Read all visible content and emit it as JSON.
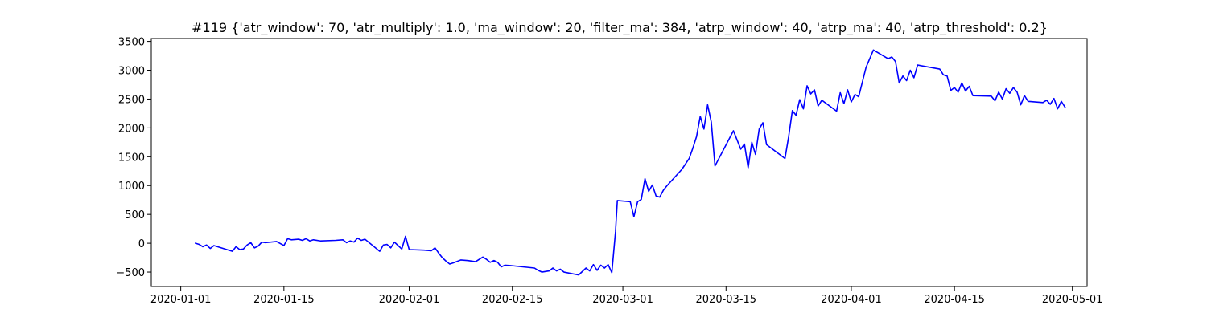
{
  "chart_data": {
    "type": "line",
    "title": "#119 {'atr_window': 70, 'atr_multiply': 1.0, 'ma_window': 20, 'filter_ma': 384, 'atrp_window': 40, 'atrp_ma': 40, 'atrp_threshold': 0.2}",
    "xlabel": "",
    "ylabel": "",
    "x_type": "date",
    "xlim": [
      "2019-12-28",
      "2020-05-03"
    ],
    "ylim": [
      -750,
      3550
    ],
    "x_ticks": [
      "2020-01-01",
      "2020-01-15",
      "2020-02-01",
      "2020-02-15",
      "2020-03-01",
      "2020-03-15",
      "2020-04-01",
      "2020-04-15",
      "2020-05-01"
    ],
    "y_ticks": [
      -500,
      0,
      500,
      1000,
      1500,
      2000,
      2500,
      3000,
      3500
    ],
    "grid": false,
    "legend": "none",
    "series": [
      {
        "color": "#0000ff",
        "points": [
          [
            "2020-01-03",
            0
          ],
          [
            "2020-01-03T12",
            -20
          ],
          [
            "2020-01-04",
            -60
          ],
          [
            "2020-01-04T12",
            -30
          ],
          [
            "2020-01-05",
            -90
          ],
          [
            "2020-01-05T12",
            -40
          ],
          [
            "2020-01-08",
            -140
          ],
          [
            "2020-01-08T12",
            -60
          ],
          [
            "2020-01-09",
            -110
          ],
          [
            "2020-01-09T12",
            -100
          ],
          [
            "2020-01-10",
            -30
          ],
          [
            "2020-01-10T12",
            10
          ],
          [
            "2020-01-11",
            -80
          ],
          [
            "2020-01-11T12",
            -50
          ],
          [
            "2020-01-12",
            20
          ],
          [
            "2020-01-12T12",
            10
          ],
          [
            "2020-01-14",
            30
          ],
          [
            "2020-01-15",
            -40
          ],
          [
            "2020-01-15T12",
            80
          ],
          [
            "2020-01-16",
            60
          ],
          [
            "2020-01-17",
            70
          ],
          [
            "2020-01-17T12",
            50
          ],
          [
            "2020-01-18",
            80
          ],
          [
            "2020-01-18T12",
            40
          ],
          [
            "2020-01-19",
            60
          ],
          [
            "2020-01-20",
            40
          ],
          [
            "2020-01-22",
            50
          ],
          [
            "2020-01-23",
            60
          ],
          [
            "2020-01-23T12",
            10
          ],
          [
            "2020-01-24",
            40
          ],
          [
            "2020-01-24T12",
            20
          ],
          [
            "2020-01-25",
            90
          ],
          [
            "2020-01-25T12",
            50
          ],
          [
            "2020-01-26",
            70
          ],
          [
            "2020-01-28",
            -140
          ],
          [
            "2020-01-28T12",
            -30
          ],
          [
            "2020-01-29",
            -20
          ],
          [
            "2020-01-29T12",
            -80
          ],
          [
            "2020-01-30",
            20
          ],
          [
            "2020-01-30T12",
            -40
          ],
          [
            "2020-01-31",
            -100
          ],
          [
            "2020-01-31T12",
            120
          ],
          [
            "2020-02-01",
            -110
          ],
          [
            "2020-02-03",
            -120
          ],
          [
            "2020-02-04",
            -130
          ],
          [
            "2020-02-04T12",
            -80
          ],
          [
            "2020-02-05",
            -170
          ],
          [
            "2020-02-05T12",
            -250
          ],
          [
            "2020-02-06",
            -310
          ],
          [
            "2020-02-06T12",
            -360
          ],
          [
            "2020-02-07",
            -340
          ],
          [
            "2020-02-08",
            -290
          ],
          [
            "2020-02-09",
            -300
          ],
          [
            "2020-02-10",
            -320
          ],
          [
            "2020-02-11",
            -240
          ],
          [
            "2020-02-11T12",
            -280
          ],
          [
            "2020-02-12",
            -330
          ],
          [
            "2020-02-12T12",
            -300
          ],
          [
            "2020-02-13",
            -330
          ],
          [
            "2020-02-13T12",
            -410
          ],
          [
            "2020-02-14",
            -380
          ],
          [
            "2020-02-15",
            -390
          ],
          [
            "2020-02-18",
            -430
          ],
          [
            "2020-02-18T12",
            -470
          ],
          [
            "2020-02-19",
            -500
          ],
          [
            "2020-02-20",
            -480
          ],
          [
            "2020-02-20T12",
            -430
          ],
          [
            "2020-02-21",
            -480
          ],
          [
            "2020-02-21T12",
            -450
          ],
          [
            "2020-02-22",
            -500
          ],
          [
            "2020-02-24",
            -550
          ],
          [
            "2020-02-25",
            -430
          ],
          [
            "2020-02-25T12",
            -480
          ],
          [
            "2020-02-26",
            -370
          ],
          [
            "2020-02-26T12",
            -470
          ],
          [
            "2020-02-27",
            -380
          ],
          [
            "2020-02-27T12",
            -430
          ],
          [
            "2020-02-28",
            -370
          ],
          [
            "2020-02-28T12",
            -510
          ],
          [
            "2020-02-29",
            200
          ],
          [
            "2020-02-29T06",
            740
          ],
          [
            "2020-03-02",
            720
          ],
          [
            "2020-03-02T12",
            460
          ],
          [
            "2020-03-03",
            720
          ],
          [
            "2020-03-03T12",
            760
          ],
          [
            "2020-03-04",
            1120
          ],
          [
            "2020-03-04T12",
            900
          ],
          [
            "2020-03-05",
            1010
          ],
          [
            "2020-03-05T12",
            820
          ],
          [
            "2020-03-06",
            800
          ],
          [
            "2020-03-06T12",
            920
          ],
          [
            "2020-03-07",
            1000
          ],
          [
            "2020-03-09",
            1280
          ],
          [
            "2020-03-10",
            1470
          ],
          [
            "2020-03-10T12",
            1650
          ],
          [
            "2020-03-11",
            1850
          ],
          [
            "2020-03-11T12",
            2200
          ],
          [
            "2020-03-12",
            1980
          ],
          [
            "2020-03-12T12",
            2400
          ],
          [
            "2020-03-13",
            2100
          ],
          [
            "2020-03-13T12",
            1340
          ],
          [
            "2020-03-16",
            1950
          ],
          [
            "2020-03-17",
            1630
          ],
          [
            "2020-03-17T12",
            1720
          ],
          [
            "2020-03-18",
            1310
          ],
          [
            "2020-03-18T12",
            1750
          ],
          [
            "2020-03-19",
            1540
          ],
          [
            "2020-03-19T12",
            1980
          ],
          [
            "2020-03-20",
            2090
          ],
          [
            "2020-03-20T12",
            1710
          ],
          [
            "2020-03-23",
            1470
          ],
          [
            "2020-03-23T12",
            1850
          ],
          [
            "2020-03-24",
            2300
          ],
          [
            "2020-03-24T12",
            2220
          ],
          [
            "2020-03-25",
            2490
          ],
          [
            "2020-03-25T12",
            2330
          ],
          [
            "2020-03-26",
            2730
          ],
          [
            "2020-03-26T12",
            2590
          ],
          [
            "2020-03-27",
            2660
          ],
          [
            "2020-03-27T12",
            2380
          ],
          [
            "2020-03-28",
            2480
          ],
          [
            "2020-03-30",
            2290
          ],
          [
            "2020-03-30T12",
            2610
          ],
          [
            "2020-03-31",
            2420
          ],
          [
            "2020-03-31T12",
            2660
          ],
          [
            "2020-04-01",
            2450
          ],
          [
            "2020-04-01T12",
            2580
          ],
          [
            "2020-04-02",
            2540
          ],
          [
            "2020-04-03",
            3050
          ],
          [
            "2020-04-04",
            3350
          ],
          [
            "2020-04-06",
            3200
          ],
          [
            "2020-04-06T12",
            3230
          ],
          [
            "2020-04-07",
            3150
          ],
          [
            "2020-04-07T12",
            2780
          ],
          [
            "2020-04-08",
            2900
          ],
          [
            "2020-04-08T12",
            2820
          ],
          [
            "2020-04-09",
            3000
          ],
          [
            "2020-04-09T12",
            2870
          ],
          [
            "2020-04-10",
            3090
          ],
          [
            "2020-04-13",
            3020
          ],
          [
            "2020-04-13T12",
            2920
          ],
          [
            "2020-04-14",
            2900
          ],
          [
            "2020-04-14T12",
            2650
          ],
          [
            "2020-04-15",
            2700
          ],
          [
            "2020-04-15T12",
            2620
          ],
          [
            "2020-04-16",
            2780
          ],
          [
            "2020-04-16T12",
            2640
          ],
          [
            "2020-04-17",
            2720
          ],
          [
            "2020-04-17T12",
            2560
          ],
          [
            "2020-04-20",
            2550
          ],
          [
            "2020-04-20T12",
            2470
          ],
          [
            "2020-04-21",
            2620
          ],
          [
            "2020-04-21T12",
            2500
          ],
          [
            "2020-04-22",
            2680
          ],
          [
            "2020-04-22T12",
            2600
          ],
          [
            "2020-04-23",
            2700
          ],
          [
            "2020-04-23T12",
            2620
          ],
          [
            "2020-04-24",
            2400
          ],
          [
            "2020-04-24T12",
            2560
          ],
          [
            "2020-04-25",
            2460
          ],
          [
            "2020-04-27",
            2440
          ],
          [
            "2020-04-27T12",
            2480
          ],
          [
            "2020-04-28",
            2410
          ],
          [
            "2020-04-28T12",
            2510
          ],
          [
            "2020-04-29",
            2330
          ],
          [
            "2020-04-29T12",
            2460
          ],
          [
            "2020-04-30",
            2360
          ]
        ]
      }
    ]
  }
}
